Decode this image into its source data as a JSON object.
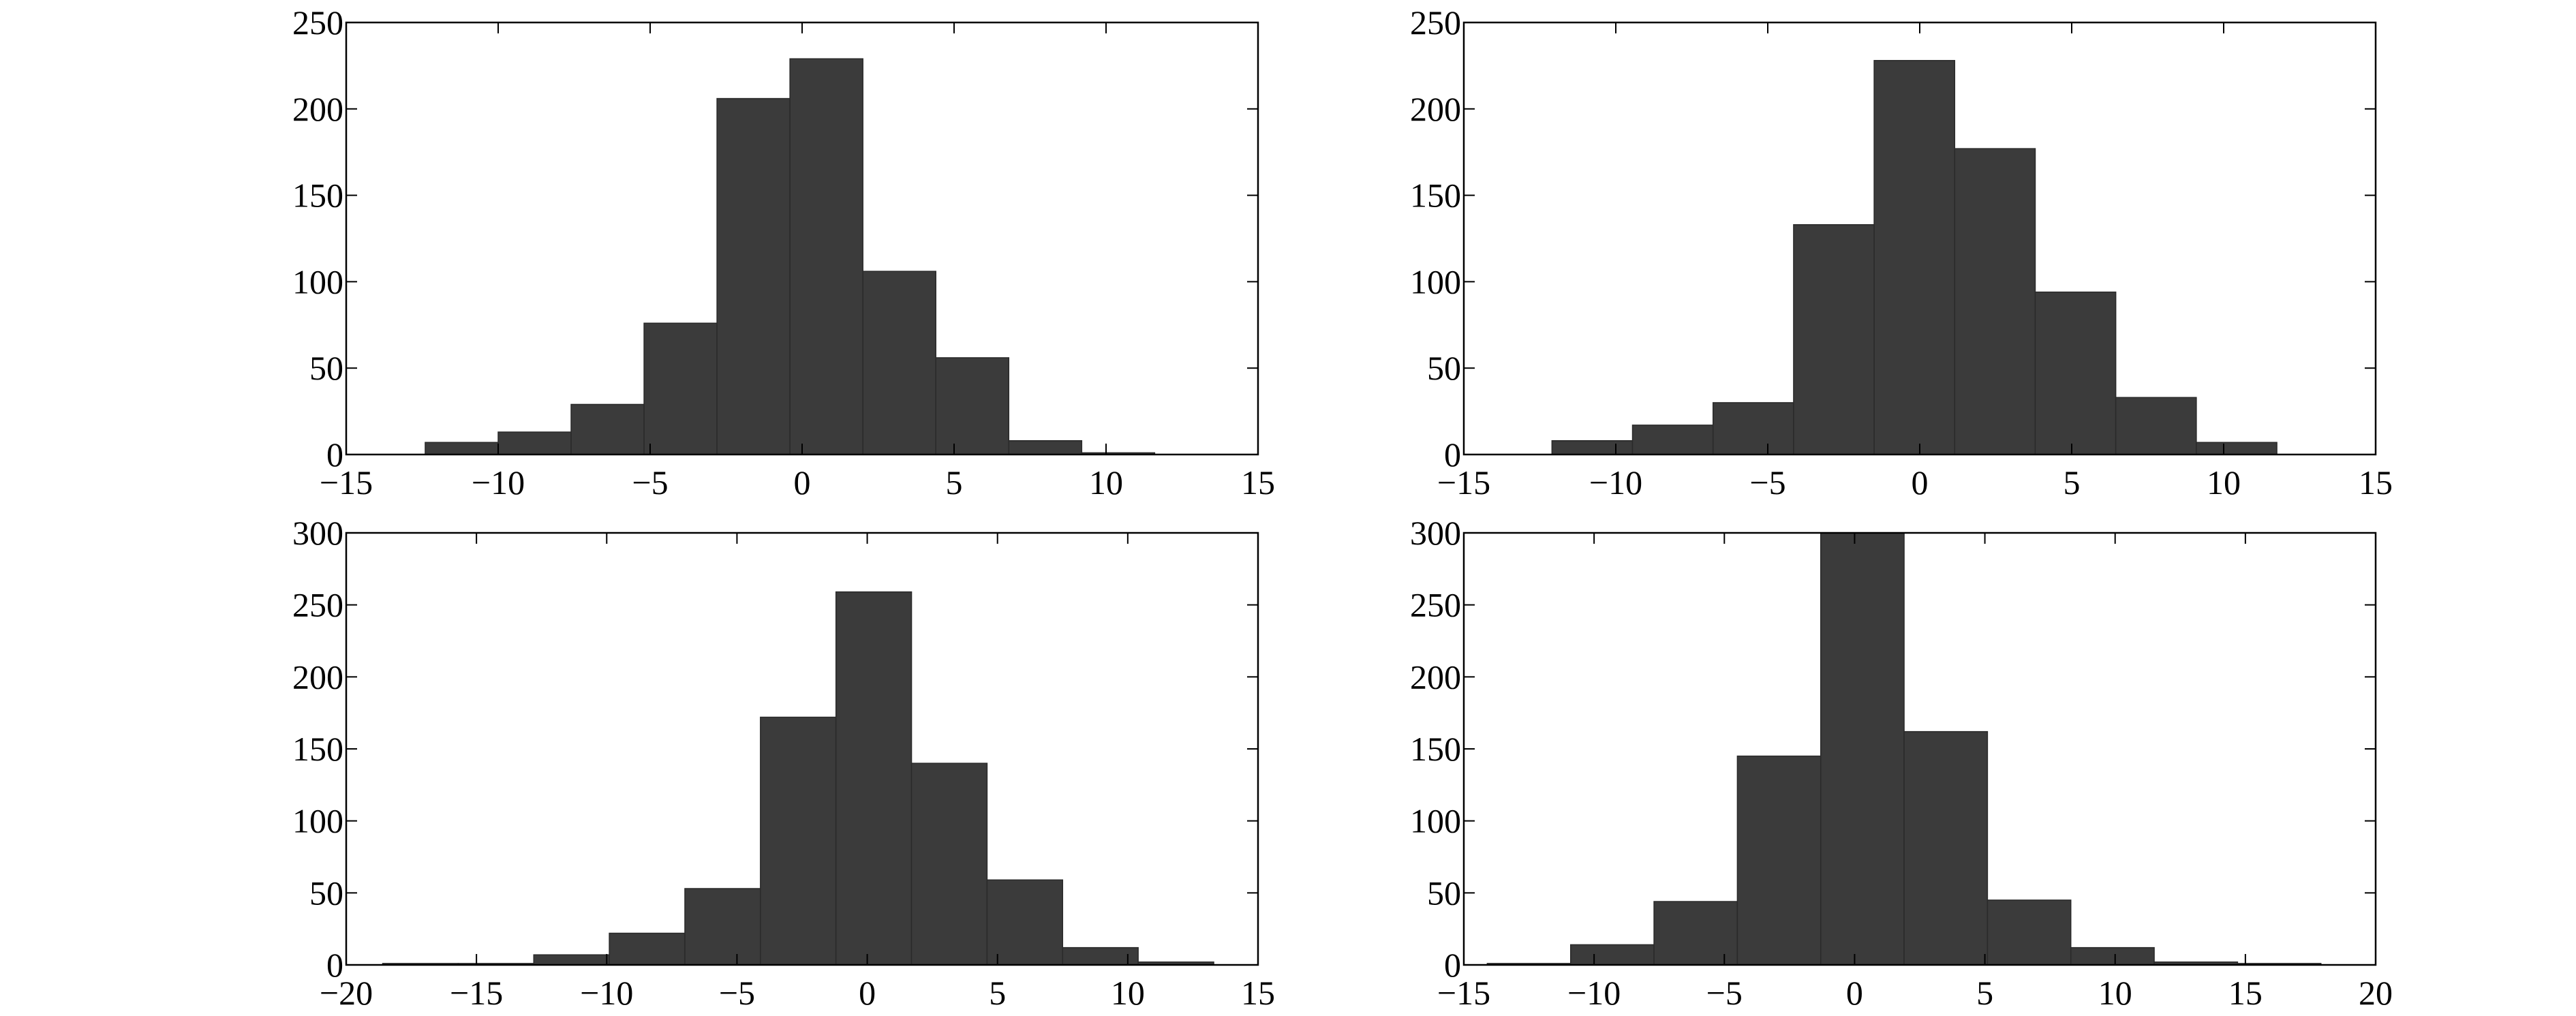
{
  "chart_data": [
    {
      "type": "bar",
      "position": "top-left",
      "title": "",
      "xlabel": "",
      "ylabel": "",
      "xlim": [
        -15,
        15
      ],
      "ylim": [
        0,
        250
      ],
      "xticks": [
        -15,
        -10,
        -5,
        0,
        5,
        10,
        15
      ],
      "yticks": [
        0,
        50,
        100,
        150,
        200,
        250
      ],
      "grid": false,
      "bin_edges": [
        -12.4,
        -10.0,
        -7.6,
        -5.2,
        -2.8,
        -0.4,
        2.0,
        4.4,
        6.8,
        9.2,
        11.6
      ],
      "values": [
        7,
        13,
        29,
        76,
        206,
        229,
        106,
        56,
        8,
        1
      ],
      "bar_color": "#3b3b3b"
    },
    {
      "type": "bar",
      "position": "top-right",
      "title": "",
      "xlabel": "",
      "ylabel": "",
      "xlim": [
        -15,
        15
      ],
      "ylim": [
        0,
        250
      ],
      "xticks": [
        -15,
        -10,
        -5,
        0,
        5,
        10,
        15
      ],
      "yticks": [
        0,
        50,
        100,
        150,
        200,
        250
      ],
      "grid": false,
      "bin_edges": [
        -12.1,
        -9.45,
        -6.8,
        -4.15,
        -1.5,
        1.15,
        3.8,
        6.45,
        9.1,
        11.75
      ],
      "values": [
        8,
        17,
        30,
        133,
        228,
        177,
        94,
        33,
        7
      ],
      "bar_color": "#3b3b3b"
    },
    {
      "type": "bar",
      "position": "bottom-left",
      "title": "",
      "xlabel": "",
      "ylabel": "",
      "xlim": [
        -20,
        15
      ],
      "ylim": [
        0,
        300
      ],
      "xticks": [
        -20,
        -15,
        -10,
        -5,
        0,
        5,
        10,
        15
      ],
      "yticks": [
        0,
        50,
        100,
        150,
        200,
        250,
        300
      ],
      "grid": false,
      "bin_edges": [
        -18.6,
        -15.7,
        -12.8,
        -9.9,
        -7.0,
        -4.1,
        -1.2,
        1.7,
        4.6,
        7.5,
        10.4,
        13.3
      ],
      "values": [
        1,
        1,
        7,
        22,
        53,
        172,
        259,
        140,
        59,
        12,
        2
      ],
      "bar_color": "#3b3b3b"
    },
    {
      "type": "bar",
      "position": "bottom-right",
      "title": "",
      "xlabel": "",
      "ylabel": "",
      "xlim": [
        -15,
        20
      ],
      "ylim": [
        0,
        300
      ],
      "xticks": [
        -15,
        -10,
        -5,
        0,
        5,
        10,
        15,
        20
      ],
      "yticks": [
        0,
        50,
        100,
        150,
        200,
        250,
        300
      ],
      "grid": false,
      "bin_edges": [
        -14.1,
        -10.9,
        -7.7,
        -4.5,
        -1.3,
        1.9,
        5.1,
        8.3,
        11.5,
        14.7,
        17.9
      ],
      "values": [
        1,
        14,
        44,
        145,
        315,
        162,
        45,
        12,
        2,
        1
      ],
      "bar_color": "#3b3b3b"
    }
  ]
}
